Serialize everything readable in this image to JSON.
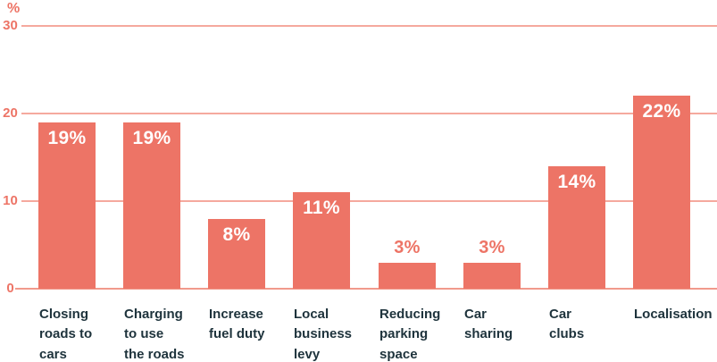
{
  "chart_data": {
    "type": "bar",
    "title": "",
    "unit_label": "%",
    "categories": [
      "Closing\nroads to\ncars",
      "Charging\nto use\nthe roads",
      "Increase\nfuel duty",
      "Local\nbusiness\nlevy",
      "Reducing\nparking\nspace",
      "Car\nsharing",
      "Car\nclubs",
      "Localisation"
    ],
    "values": [
      19,
      19,
      8,
      11,
      3,
      3,
      14,
      22
    ],
    "value_labels": [
      "19%",
      "19%",
      "8%",
      "11%",
      "3%",
      "3%",
      "14%",
      "22%"
    ],
    "yticks": [
      0,
      10,
      20,
      30
    ],
    "ytick_labels": [
      "0",
      "10",
      "20",
      "30"
    ],
    "ylim": [
      0,
      30
    ],
    "grid": "horizontal",
    "legend": "none",
    "xlabel": "",
    "ylabel": "%",
    "colors": {
      "bar": "#ED7466",
      "gridline": "#F5A99E",
      "zero_line": "#F19A8C",
      "axis_text": "#ED7466",
      "category_text": "#1E333C",
      "value_inside": "#FFFFFF",
      "value_outside": "#ED7466"
    }
  }
}
